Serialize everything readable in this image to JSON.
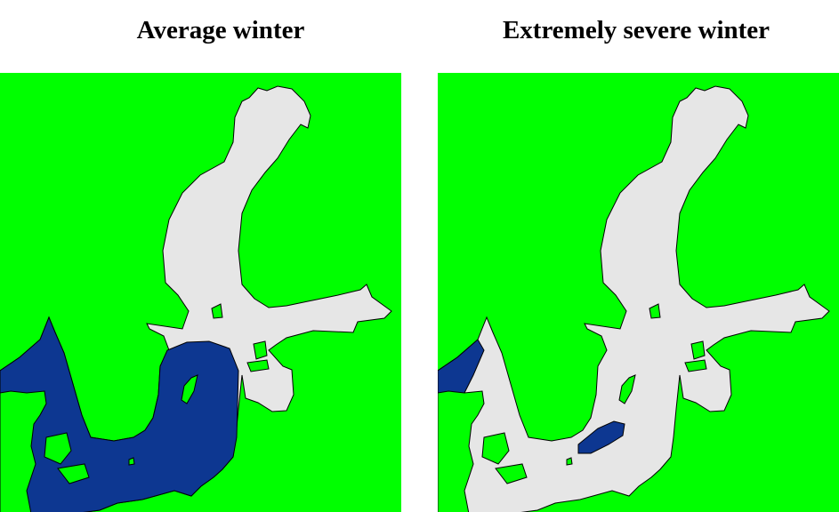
{
  "panels": [
    {
      "title": "Average winter",
      "ice_extent": "Gulf of Bothnia, Gulf of Finland, Gulf of Riga and northern Baltic Proper ice-covered; southern Baltic, Danish straits and Kattegat open water"
    },
    {
      "title": "Extremely severe winter",
      "ice_extent": "Entire Baltic Sea ice-covered except a small open-water patch in the southern Baltic Proper and the Skagerrak"
    }
  ],
  "colors": {
    "land": "#00ff00",
    "ice": "#e6e6e6",
    "open_water": "#0d3791",
    "coastline": "#000000"
  }
}
